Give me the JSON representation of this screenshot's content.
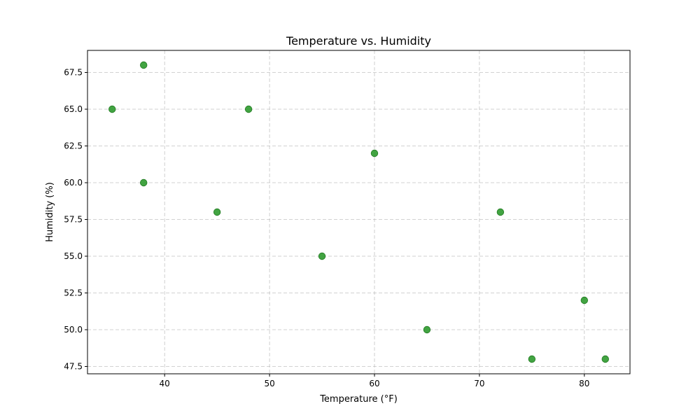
{
  "chart_data": {
    "type": "scatter",
    "title": "Temperature vs. Humidity",
    "xlabel": "Temperature (°F)",
    "ylabel": "Humidity (%)",
    "xlim": [
      32.65,
      84.35
    ],
    "ylim": [
      47.0,
      69.0
    ],
    "x_ticks": [
      40,
      50,
      60,
      70,
      80
    ],
    "x_tick_labels": [
      "40",
      "50",
      "60",
      "70",
      "80"
    ],
    "y_ticks": [
      47.5,
      50.0,
      52.5,
      55.0,
      57.5,
      60.0,
      62.5,
      65.0,
      67.5
    ],
    "y_tick_labels": [
      "47.5",
      "50.0",
      "52.5",
      "55.0",
      "57.5",
      "60.0",
      "62.5",
      "65.0",
      "67.5"
    ],
    "grid": true,
    "series": [
      {
        "color": "#2e9a2e",
        "points": [
          {
            "x": 35,
            "y": 65
          },
          {
            "x": 38,
            "y": 68
          },
          {
            "x": 38,
            "y": 60
          },
          {
            "x": 45,
            "y": 58
          },
          {
            "x": 48,
            "y": 65
          },
          {
            "x": 55,
            "y": 55
          },
          {
            "x": 60,
            "y": 62
          },
          {
            "x": 65,
            "y": 50
          },
          {
            "x": 72,
            "y": 58
          },
          {
            "x": 75,
            "y": 48
          },
          {
            "x": 80,
            "y": 52
          },
          {
            "x": 82,
            "y": 48
          }
        ]
      }
    ]
  }
}
